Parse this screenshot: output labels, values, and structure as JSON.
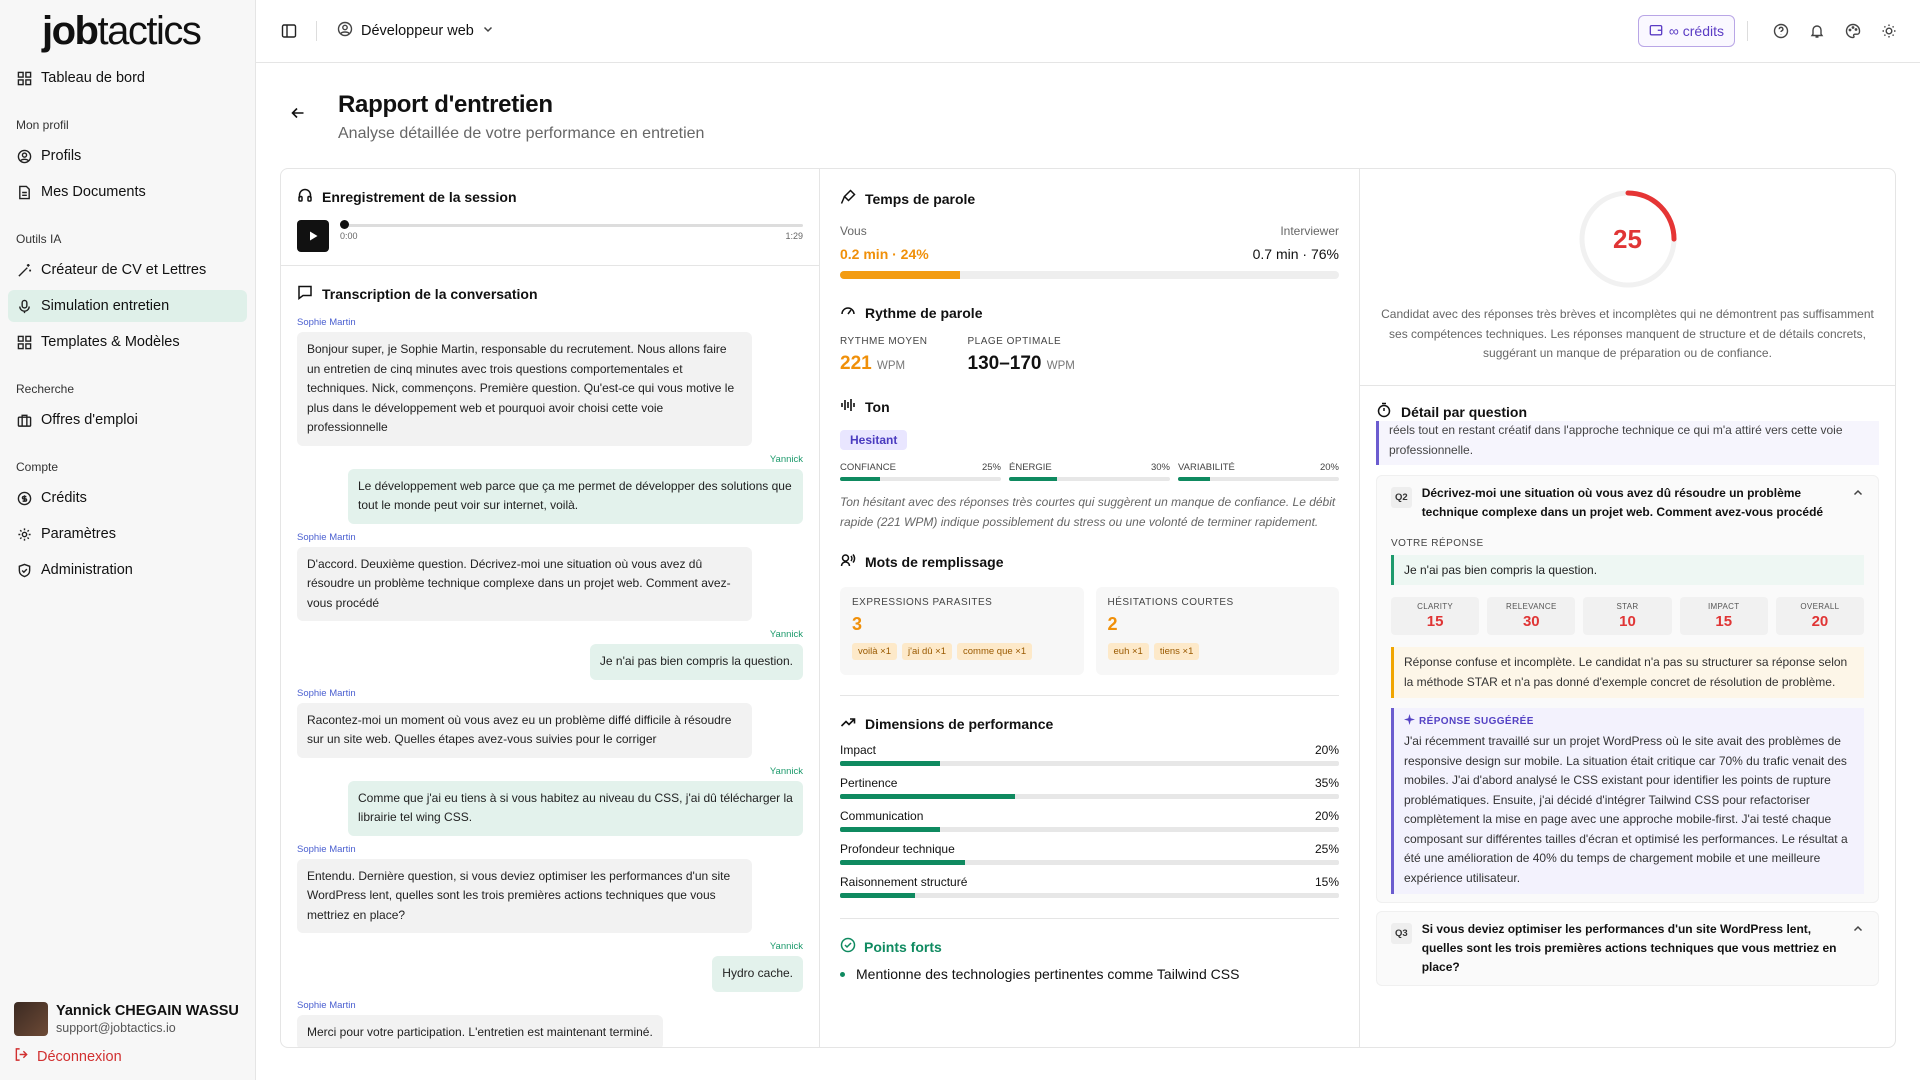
{
  "brand": {
    "logo_a": "job",
    "logo_b": "tactics"
  },
  "sidebar": {
    "dashboard": "Tableau de bord",
    "sections": [
      {
        "title": "Mon profil",
        "items": [
          "Profils",
          "Mes Documents"
        ]
      },
      {
        "title": "Outils IA",
        "items": [
          "Créateur de CV et Lettres",
          "Simulation entretien",
          "Templates & Modèles"
        ]
      },
      {
        "title": "Recherche",
        "items": [
          "Offres d'emploi"
        ]
      },
      {
        "title": "Compte",
        "items": [
          "Crédits",
          "Paramètres",
          "Administration"
        ]
      }
    ],
    "user": {
      "name": "Yannick CHEGAIN WASSU",
      "email": "support@jobtactics.io"
    },
    "logout": "Déconnexion"
  },
  "topbar": {
    "profile": "Développeur web",
    "credits": "∞ crédits"
  },
  "page": {
    "title": "Rapport d'entretien",
    "subtitle": "Analyse détaillée de votre performance en entretien"
  },
  "recording": {
    "title": "Enregistrement de la session",
    "start": "0:00",
    "end": "1:29"
  },
  "transcript": {
    "title": "Transcription de la conversation",
    "messages": [
      {
        "speaker": "Sophie Martin",
        "text": "Bonjour super, je Sophie Martin, responsable du recrutement. Nous allons faire un entretien de cinq minutes avec trois questions comportementales et techniques. Nick, commençons. Première question. Qu'est-ce qui vous motive le plus dans le développement web et pourquoi avoir choisi cette voie professionnelle"
      },
      {
        "speaker": "Yannick",
        "text": "Le développement web parce que ça me permet de développer des solutions que tout le monde peut voir sur internet, voilà."
      },
      {
        "speaker": "Sophie Martin",
        "text": "D'accord. Deuxième question. Décrivez-moi une situation où vous avez dû résoudre un problème technique complexe dans un projet web. Comment avez-vous procédé"
      },
      {
        "speaker": "Yannick",
        "text": "Je n'ai pas bien compris la question."
      },
      {
        "speaker": "Sophie Martin",
        "text": "Racontez-moi un moment où vous avez eu un problème diffé difficile à résoudre sur un site web. Quelles étapes avez-vous suivies pour le corriger"
      },
      {
        "speaker": "Yannick",
        "text": "Comme que j'ai eu tiens à si vous habitez au niveau du CSS, j'ai dû télécharger la librairie tel wing CSS."
      },
      {
        "speaker": "Sophie Martin",
        "text": "Entendu. Dernière question, si vous deviez optimiser les performances d'un site WordPress lent, quelles sont les trois premières actions techniques que vous mettriez en place?"
      },
      {
        "speaker": "Yannick",
        "text": "Hydro cache."
      },
      {
        "speaker": "Sophie Martin",
        "text": "Merci pour votre participation. L'entretien est maintenant terminé."
      }
    ]
  },
  "talk_time": {
    "title": "Temps de parole",
    "you_label": "Vous",
    "interviewer_label": "Interviewer",
    "you_value": "0.2 min · 24%",
    "interviewer_value": "0.7 min · 76%",
    "you_pct": 24
  },
  "rhythm": {
    "title": "Rythme de parole",
    "avg_label": "RYTHME MOYEN",
    "avg": "221",
    "unit": "WPM",
    "opt_label": "PLAGE OPTIMALE",
    "opt": "130–170"
  },
  "tone": {
    "title": "Ton",
    "tag": "Hesitant",
    "bars": [
      {
        "label": "CONFIANCE",
        "value": "25%",
        "pct": 25
      },
      {
        "label": "ÉNERGIE",
        "value": "30%",
        "pct": 30
      },
      {
        "label": "VARIABILITÉ",
        "value": "20%",
        "pct": 20
      }
    ],
    "note": "Ton hésitant avec des réponses très courtes qui suggèrent un manque de confiance. Le débit rapide (221 WPM) indique possiblement du stress ou une volonté de terminer rapidement."
  },
  "fillers": {
    "title": "Mots de remplissage",
    "cards": [
      {
        "label": "EXPRESSIONS PARASITES",
        "count": "3",
        "chips": [
          "voilà ×1",
          "j'ai dû ×1",
          "comme que ×1"
        ]
      },
      {
        "label": "HÉSITATIONS COURTES",
        "count": "2",
        "chips": [
          "euh ×1",
          "tiens ×1"
        ]
      }
    ]
  },
  "dimensions": {
    "title": "Dimensions de performance",
    "items": [
      {
        "label": "Impact",
        "value": "20%",
        "pct": 20
      },
      {
        "label": "Pertinence",
        "value": "35%",
        "pct": 35
      },
      {
        "label": "Communication",
        "value": "20%",
        "pct": 20
      },
      {
        "label": "Profondeur technique",
        "value": "25%",
        "pct": 25
      },
      {
        "label": "Raisonnement structuré",
        "value": "15%",
        "pct": 15
      }
    ]
  },
  "strengths": {
    "title": "Points forts",
    "items": [
      "Mentionne des technologies pertinentes comme Tailwind CSS"
    ]
  },
  "score": {
    "value": "25",
    "pct": 25,
    "text": "Candidat avec des réponses très brèves et incomplètes qui ne démontrent pas suffisamment ses compétences techniques. Les réponses manquent de structure et de détails concrets, suggérant un manque de préparation ou de confiance."
  },
  "detail": {
    "title": "Détail par question",
    "prev_text": "réels tout en restant créatif dans l'approche technique ce qui m'a attiré vers cette voie professionnelle.",
    "q2": {
      "num": "Q2",
      "question": "Décrivez-moi une situation où vous avez dû résoudre un problème technique complexe dans un projet web. Comment avez-vous procédé",
      "answer_label": "VOTRE RÉPONSE",
      "answer": "Je n'ai pas bien compris la question.",
      "metrics": [
        {
          "k": "CLARITY",
          "v": "15"
        },
        {
          "k": "RELEVANCE",
          "v": "30"
        },
        {
          "k": "STAR",
          "v": "10"
        },
        {
          "k": "IMPACT",
          "v": "15"
        },
        {
          "k": "OVERALL",
          "v": "20"
        }
      ],
      "feedback": "Réponse confuse et incomplète. Le candidat n'a pas su structurer sa réponse selon la méthode STAR et n'a pas donné d'exemple concret de résolution de problème.",
      "suggested_label": "RÉPONSE SUGGÉRÉE",
      "suggested": "J'ai récemment travaillé sur un projet WordPress où le site avait des problèmes de responsive design sur mobile. La situation était critique car 70% du trafic venait des mobiles. J'ai d'abord analysé le CSS existant pour identifier les points de rupture problématiques. Ensuite, j'ai décidé d'intégrer Tailwind CSS pour refactoriser complètement la mise en page avec une approche mobile-first. J'ai testé chaque composant sur différentes tailles d'écran et optimisé les performances. Le résultat a été une amélioration de 40% du temps de chargement mobile et une meilleure expérience utilisateur."
    },
    "q3": {
      "num": "Q3",
      "question": "Si vous deviez optimiser les performances d'un site WordPress lent, quelles sont les trois premières actions techniques que vous mettriez en place?"
    }
  }
}
